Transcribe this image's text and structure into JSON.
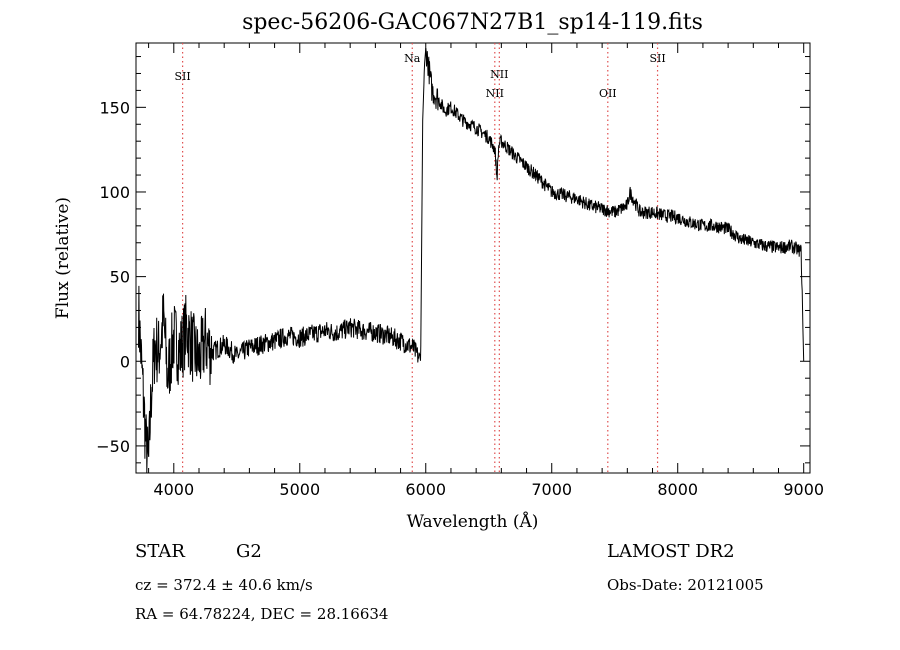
{
  "chart_data": {
    "type": "line",
    "title": "spec-56206-GAC067N27B1_sp14-119.fits",
    "xlabel": "Wavelength (Å)",
    "ylabel": "Flux (relative)",
    "xlim": [
      3700,
      9050
    ],
    "ylim": [
      -66,
      188
    ],
    "x_ticks": [
      4000,
      5000,
      6000,
      7000,
      8000,
      9000
    ],
    "y_ticks": [
      -50,
      0,
      50,
      100,
      150
    ],
    "grid": false,
    "line_markers": [
      {
        "name": "SII",
        "x": 4070
      },
      {
        "name": "Na",
        "x": 5893
      },
      {
        "name": "NII",
        "x": 6548
      },
      {
        "name": "NII",
        "x": 6584
      },
      {
        "name": "OII",
        "x": 7445
      },
      {
        "name": "SII",
        "x": 7840
      }
    ],
    "series": [
      {
        "x": [
          3720,
          3750,
          3780,
          3800,
          3820,
          3850,
          3880,
          3920,
          3950,
          4000,
          4050,
          4100,
          4150,
          4200,
          4250,
          4300,
          4400,
          4500,
          4600,
          4700,
          4800,
          4900,
          5000,
          5100,
          5200,
          5300,
          5400,
          5500,
          5600,
          5700,
          5800,
          5900,
          5960,
          5975,
          5990,
          6000,
          6010,
          6030,
          6050,
          6100,
          6150,
          6200,
          6300,
          6400,
          6500,
          6550,
          6565,
          6580,
          6600,
          6700,
          6800,
          6900,
          7000,
          7100,
          7200,
          7300,
          7400,
          7500,
          7600,
          7620,
          7700,
          7800,
          7900,
          8000,
          8100,
          8200,
          8300,
          8400,
          8500,
          8600,
          8700,
          8800,
          8900,
          8980,
          9000
        ],
        "y": [
          30,
          -10,
          -50,
          -62,
          -20,
          10,
          5,
          25,
          -10,
          15,
          5,
          20,
          8,
          0,
          12,
          5,
          10,
          3,
          8,
          10,
          12,
          15,
          14,
          16,
          18,
          17,
          20,
          18,
          17,
          15,
          12,
          8,
          0,
          140,
          175,
          185,
          180,
          170,
          160,
          155,
          148,
          150,
          142,
          138,
          132,
          125,
          108,
          128,
          130,
          122,
          115,
          108,
          100,
          98,
          96,
          92,
          90,
          88,
          92,
          100,
          88,
          88,
          86,
          85,
          82,
          80,
          80,
          78,
          72,
          70,
          68,
          67,
          68,
          65,
          0
        ]
      }
    ]
  },
  "info": {
    "class_label": "STAR",
    "subclass_label": "G2",
    "survey_label": "LAMOST DR2",
    "cz_text": "cz = 372.4 ± 40.6 km/s",
    "obs_date_text": "Obs-Date: 20121005",
    "coords_text": "RA =  64.78224, DEC =  28.16634"
  }
}
